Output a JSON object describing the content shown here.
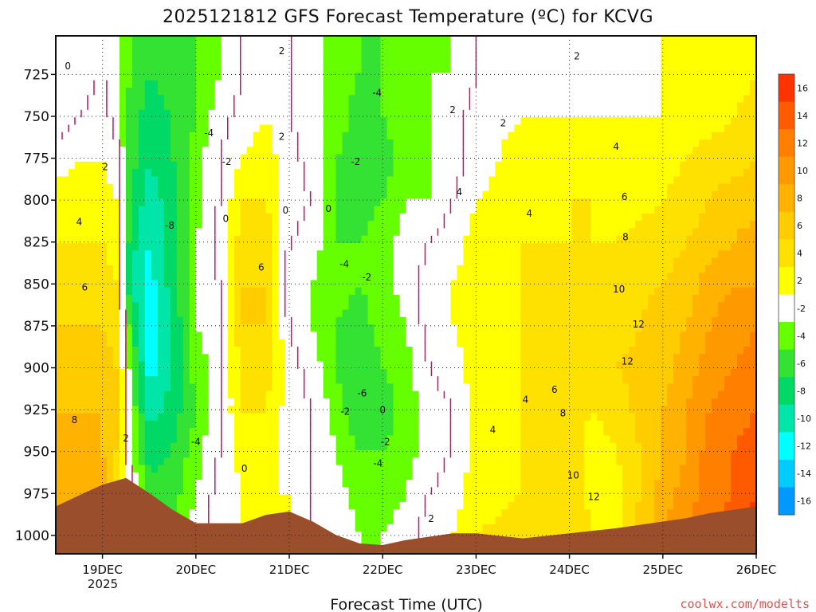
{
  "chart_data": {
    "type": "heatmap",
    "title": "2025121812 GFS Forecast Temperature (ºC) for KCVG",
    "xlabel": "Forecast Time (UTC)",
    "ylabel": "",
    "credit": "coolwx.com/modelts",
    "x_ticks": [
      "19DEC",
      "20DEC",
      "21DEC",
      "22DEC",
      "23DEC",
      "24DEC",
      "25DEC",
      "26DEC"
    ],
    "x_year": "2025",
    "y_ticks": [
      "725",
      "750",
      "775",
      "800",
      "825",
      "850",
      "875",
      "900",
      "925",
      "950",
      "975",
      "1000"
    ],
    "y_range_hpa": [
      702,
      1011
    ],
    "x_range_days": [
      -0.5,
      7.0
    ],
    "colorbar_labels": [
      "16",
      "14",
      "12",
      "10",
      "8",
      "6",
      "4",
      "2",
      "-2",
      "-4",
      "-6",
      "-8",
      "-10",
      "-12",
      "-14",
      "-16"
    ],
    "colorbar_colors": [
      "#ff3300",
      "#ff5a00",
      "#ff7f00",
      "#ff9900",
      "#ffb300",
      "#ffcc00",
      "#ffe100",
      "#ffff00",
      "#ffffff",
      "#66ff00",
      "#33e233",
      "#00d966",
      "#00e6a8",
      "#00ffff",
      "#00ccff",
      "#0099ff"
    ],
    "column_profiles": [
      {
        "time": -0.5,
        "temps": [
          -1,
          -1,
          1,
          3,
          4,
          5,
          6,
          7,
          8,
          8,
          8,
          9
        ]
      },
      {
        "time": -0.25,
        "temps": [
          -1,
          0,
          2,
          3,
          4,
          5,
          6,
          7,
          8,
          8,
          9,
          9
        ]
      },
      {
        "time": 0.0,
        "temps": [
          0,
          1,
          2,
          3,
          4,
          5,
          6,
          7,
          8,
          8,
          9,
          9
        ]
      },
      {
        "time": 0.15,
        "temps": [
          -2,
          -1,
          1,
          2,
          3,
          4,
          5,
          6,
          7,
          6,
          5,
          5
        ]
      },
      {
        "time": 0.3,
        "temps": [
          -4,
          -5,
          -5,
          -6,
          -7,
          -8,
          -5,
          -3,
          -2,
          -1,
          0,
          0
        ]
      },
      {
        "time": 0.5,
        "temps": [
          -6,
          -7,
          -8,
          -9,
          -10,
          -11,
          -12,
          -11,
          -9,
          -7,
          -5,
          -4
        ]
      },
      {
        "time": 0.75,
        "temps": [
          -5,
          -6,
          -6,
          -7,
          -7,
          -7,
          -8,
          -8,
          -7,
          -6,
          -5,
          -4
        ]
      },
      {
        "time": 1.0,
        "temps": [
          -4,
          -4,
          -3,
          -3,
          -2,
          -2,
          -2,
          -3,
          -4,
          -3,
          -2,
          -1
        ]
      },
      {
        "time": 1.25,
        "temps": [
          -2,
          -1,
          0,
          0,
          1,
          0,
          -1,
          -1,
          0,
          0,
          1,
          1
        ]
      },
      {
        "time": 1.5,
        "temps": [
          0,
          1,
          2,
          4,
          5,
          6,
          6,
          5,
          4,
          3,
          2,
          2
        ]
      },
      {
        "time": 1.75,
        "temps": [
          1,
          2,
          3,
          4,
          6,
          6,
          6,
          5,
          4,
          3,
          2,
          2
        ]
      },
      {
        "time": 2.0,
        "temps": [
          0,
          0,
          1,
          1,
          0,
          -1,
          0,
          1,
          1,
          1,
          2,
          2
        ]
      },
      {
        "time": 2.25,
        "temps": [
          -1,
          -1,
          -1,
          0,
          -1,
          -2,
          -2,
          -1,
          0,
          0,
          0,
          0
        ]
      },
      {
        "time": 2.5,
        "temps": [
          -3,
          -3,
          -4,
          -4,
          -4,
          -3,
          -4,
          -4,
          -3,
          -2,
          -1,
          0
        ]
      },
      {
        "time": 2.75,
        "temps": [
          -4,
          -5,
          -5,
          -5,
          -4,
          -4,
          -5,
          -6,
          -6,
          -4,
          -3,
          -2
        ]
      },
      {
        "time": 3.0,
        "temps": [
          -4,
          -4,
          -5,
          -4,
          -3,
          -3,
          -3,
          -4,
          -5,
          -4,
          -3,
          -2
        ]
      },
      {
        "time": 3.25,
        "temps": [
          -3,
          -3,
          -3,
          -2,
          -1,
          -1,
          -2,
          -3,
          -3,
          -3,
          -2,
          -1
        ]
      },
      {
        "time": 3.5,
        "temps": [
          -2,
          -2,
          -2,
          -2,
          0,
          1,
          1,
          0,
          -1,
          -1,
          0,
          1
        ]
      },
      {
        "time": 3.75,
        "temps": [
          -2,
          -1,
          -1,
          0,
          1,
          2,
          2,
          1,
          0,
          0,
          1,
          2
        ]
      },
      {
        "time": 4.0,
        "temps": [
          0,
          1,
          1,
          2,
          3,
          3,
          3,
          3,
          3,
          3,
          3,
          4
        ]
      },
      {
        "time": 4.5,
        "temps": [
          1,
          2,
          3,
          3,
          4,
          4,
          4,
          4,
          4,
          4,
          4,
          5
        ]
      },
      {
        "time": 5.0,
        "temps": [
          1,
          2,
          3,
          4,
          4,
          4,
          4,
          4,
          5,
          5,
          6,
          6
        ]
      },
      {
        "time": 5.25,
        "temps": [
          2,
          2,
          3,
          4,
          4,
          4,
          5,
          5,
          4,
          3,
          3,
          4
        ]
      },
      {
        "time": 5.5,
        "temps": [
          1,
          2,
          3,
          3,
          4,
          5,
          5,
          6,
          5,
          4,
          3,
          3
        ]
      },
      {
        "time": 6.0,
        "temps": [
          2,
          2,
          3,
          4,
          5,
          6,
          7,
          7,
          8,
          8,
          9,
          10
        ]
      },
      {
        "time": 6.25,
        "temps": [
          2,
          3,
          4,
          5,
          6,
          7,
          8,
          9,
          10,
          10,
          11,
          12
        ]
      },
      {
        "time": 6.5,
        "temps": [
          3,
          3,
          5,
          6,
          7,
          9,
          10,
          11,
          12,
          13,
          13,
          14
        ]
      },
      {
        "time": 6.75,
        "temps": [
          3,
          4,
          5,
          7,
          8,
          10,
          11,
          12,
          13,
          14,
          14,
          15
        ]
      },
      {
        "time": 7.0,
        "temps": [
          4,
          5,
          6,
          7,
          9,
          10,
          12,
          13,
          14,
          15,
          16,
          17
        ]
      }
    ],
    "contour_labels": [
      {
        "text": "0",
        "time": -0.37,
        "hpa": 722
      },
      {
        "text": "2",
        "time": 0.03,
        "hpa": 782
      },
      {
        "text": "4",
        "time": -0.25,
        "hpa": 815
      },
      {
        "text": "6",
        "time": -0.19,
        "hpa": 854
      },
      {
        "text": "8",
        "time": -0.3,
        "hpa": 933
      },
      {
        "text": "2",
        "time": 0.25,
        "hpa": 944
      },
      {
        "text": "-8",
        "time": 0.72,
        "hpa": 817
      },
      {
        "text": "-4",
        "time": 1.14,
        "hpa": 762
      },
      {
        "text": "-2",
        "time": 1.33,
        "hpa": 779
      },
      {
        "text": "0",
        "time": 1.32,
        "hpa": 813
      },
      {
        "text": "-4",
        "time": 1.0,
        "hpa": 946
      },
      {
        "text": "0",
        "time": 1.52,
        "hpa": 962
      },
      {
        "text": "2",
        "time": 1.92,
        "hpa": 713
      },
      {
        "text": "2",
        "time": 1.92,
        "hpa": 764
      },
      {
        "text": "0",
        "time": 1.96,
        "hpa": 808
      },
      {
        "text": "6",
        "time": 1.7,
        "hpa": 842
      },
      {
        "text": "-4",
        "time": 2.94,
        "hpa": 738
      },
      {
        "text": "-2",
        "time": 2.71,
        "hpa": 779
      },
      {
        "text": "0",
        "time": 2.42,
        "hpa": 807
      },
      {
        "text": "-4",
        "time": 2.59,
        "hpa": 840
      },
      {
        "text": "-2",
        "time": 2.83,
        "hpa": 848
      },
      {
        "text": "-6",
        "time": 2.78,
        "hpa": 917
      },
      {
        "text": "-2",
        "time": 2.6,
        "hpa": 928
      },
      {
        "text": "0",
        "time": 3.0,
        "hpa": 927
      },
      {
        "text": "-2",
        "time": 3.03,
        "hpa": 946
      },
      {
        "text": "-4",
        "time": 2.95,
        "hpa": 959
      },
      {
        "text": "2",
        "time": 3.52,
        "hpa": 992
      },
      {
        "text": "2",
        "time": 3.75,
        "hpa": 748
      },
      {
        "text": "2",
        "time": 4.29,
        "hpa": 756
      },
      {
        "text": "4",
        "time": 3.82,
        "hpa": 797
      },
      {
        "text": "4",
        "time": 4.57,
        "hpa": 810
      },
      {
        "text": "2",
        "time": 5.08,
        "hpa": 716
      },
      {
        "text": "4",
        "time": 5.5,
        "hpa": 770
      },
      {
        "text": "6",
        "time": 5.59,
        "hpa": 800
      },
      {
        "text": "8",
        "time": 5.6,
        "hpa": 824
      },
      {
        "text": "10",
        "time": 5.53,
        "hpa": 855
      },
      {
        "text": "12",
        "time": 5.74,
        "hpa": 876
      },
      {
        "text": "12",
        "time": 5.62,
        "hpa": 898
      },
      {
        "text": "6",
        "time": 4.84,
        "hpa": 915
      },
      {
        "text": "4",
        "time": 4.53,
        "hpa": 921
      },
      {
        "text": "4",
        "time": 4.18,
        "hpa": 939
      },
      {
        "text": "8",
        "time": 4.93,
        "hpa": 929
      },
      {
        "text": "10",
        "time": 5.04,
        "hpa": 966
      },
      {
        "text": "12",
        "time": 5.26,
        "hpa": 979
      }
    ]
  }
}
